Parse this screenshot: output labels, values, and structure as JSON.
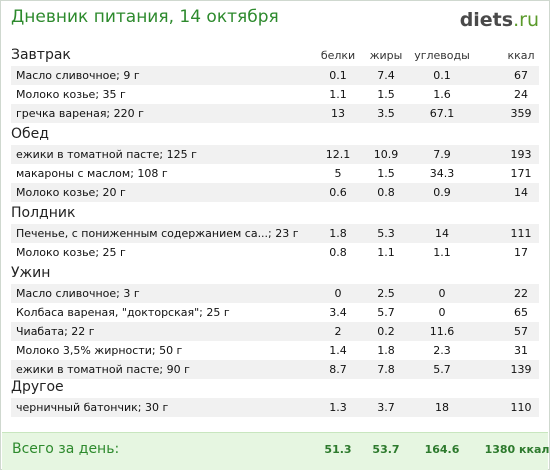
{
  "header": {
    "title": "Дневник питания, 14 октября",
    "brand_main": "diets",
    "brand_tld": ".ru"
  },
  "columns": {
    "protein": "белки",
    "fat": "жиры",
    "carbs": "углеводы",
    "kcal": "ккал"
  },
  "sections": [
    {
      "name": "Завтрак",
      "rows": [
        {
          "name": "Масло сливочное; 9 г",
          "protein": "0.1",
          "fat": "7.4",
          "carbs": "0.1",
          "kcal": "67"
        },
        {
          "name": "Молоко козье; 35 г",
          "protein": "1.1",
          "fat": "1.5",
          "carbs": "1.6",
          "kcal": "24"
        },
        {
          "name": "гречка вареная; 220 г",
          "protein": "13",
          "fat": "3.5",
          "carbs": "67.1",
          "kcal": "359"
        }
      ]
    },
    {
      "name": "Обед",
      "rows": [
        {
          "name": "ежики в томатной пасте; 125 г",
          "protein": "12.1",
          "fat": "10.9",
          "carbs": "7.9",
          "kcal": "193"
        },
        {
          "name": "макароны с маслом; 108 г",
          "protein": "5",
          "fat": "1.5",
          "carbs": "34.3",
          "kcal": "171"
        },
        {
          "name": "Молоко козье; 20 г",
          "protein": "0.6",
          "fat": "0.8",
          "carbs": "0.9",
          "kcal": "14"
        }
      ]
    },
    {
      "name": "Полдник",
      "rows": [
        {
          "name": "Печенье, с пониженным содержанием са...; 23 г",
          "protein": "1.8",
          "fat": "5.3",
          "carbs": "14",
          "kcal": "111"
        },
        {
          "name": "Молоко козье; 25 г",
          "protein": "0.8",
          "fat": "1.1",
          "carbs": "1.1",
          "kcal": "17"
        }
      ]
    },
    {
      "name": "Ужин",
      "rows": [
        {
          "name": "Масло сливочное; 3 г",
          "protein": "0",
          "fat": "2.5",
          "carbs": "0",
          "kcal": "22"
        },
        {
          "name": "Колбаса вареная, \"докторская\"; 25 г",
          "protein": "3.4",
          "fat": "5.7",
          "carbs": "0",
          "kcal": "65"
        },
        {
          "name": "Чиабата; 22 г",
          "protein": "2",
          "fat": "0.2",
          "carbs": "11.6",
          "kcal": "57"
        },
        {
          "name": "Молоко 3,5% жирности; 50 г",
          "protein": "1.4",
          "fat": "1.8",
          "carbs": "2.3",
          "kcal": "31"
        },
        {
          "name": "ежики в томатной пасте; 90 г",
          "protein": "8.7",
          "fat": "7.8",
          "carbs": "5.7",
          "kcal": "139"
        }
      ]
    },
    {
      "name": "Другое",
      "rows": [
        {
          "name": "черничный батончик; 30 г",
          "protein": "1.3",
          "fat": "3.7",
          "carbs": "18",
          "kcal": "110"
        }
      ]
    }
  ],
  "total": {
    "label": "Всего за день:",
    "protein": "51.3",
    "fat": "53.7",
    "carbs": "164.6",
    "kcal": "1380 ккал"
  }
}
